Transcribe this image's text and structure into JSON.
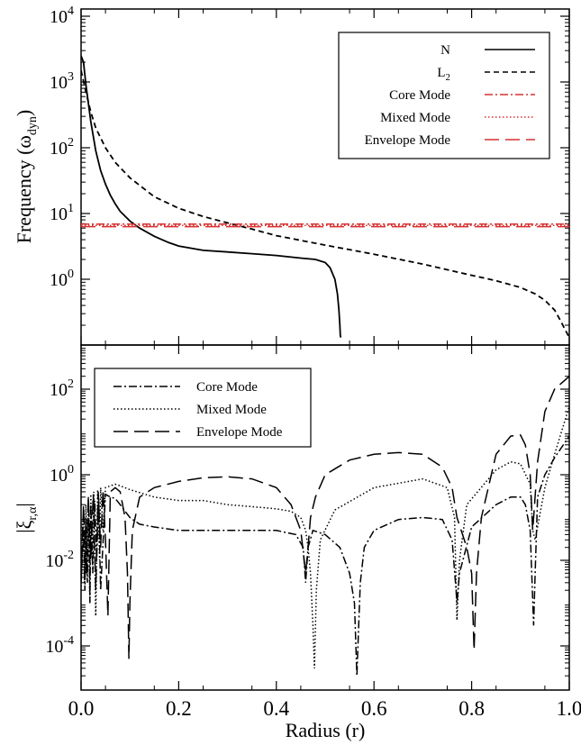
{
  "chart_data": [
    {
      "type": "line",
      "panel": "top",
      "ylabel": "Frequency (ω",
      "ylabel_sub": "dyn",
      "ylabel_close": ")",
      "yscale": "log",
      "ylim": [
        0.13,
        10000
      ],
      "xlim": [
        0,
        1
      ],
      "yticks": [
        {
          "base": "10",
          "exp": "4",
          "value": 10000
        },
        {
          "base": "10",
          "exp": "3",
          "value": 1000
        },
        {
          "base": "10",
          "exp": "2",
          "value": 100
        },
        {
          "base": "10",
          "exp": "1",
          "value": 10
        },
        {
          "base": "10",
          "exp": "0",
          "value": 1
        }
      ],
      "legend": {
        "placement": "top-right"
      },
      "series": [
        {
          "name": "N",
          "name_sub": "",
          "style": "solid",
          "color": "#000000",
          "x": [
            0.0,
            0.005,
            0.01,
            0.02,
            0.03,
            0.04,
            0.05,
            0.06,
            0.07,
            0.08,
            0.1,
            0.12,
            0.15,
            0.18,
            0.2,
            0.25,
            0.3,
            0.35,
            0.4,
            0.45,
            0.48,
            0.5,
            0.51,
            0.52,
            0.525,
            0.528,
            0.53,
            0.531,
            0.532
          ],
          "y": [
            2500,
            2000,
            900,
            250,
            90,
            45,
            28,
            19,
            14,
            10.8,
            7.7,
            6.0,
            4.5,
            3.6,
            3.2,
            2.75,
            2.6,
            2.45,
            2.3,
            2.1,
            2.0,
            1.8,
            1.5,
            1.0,
            0.6,
            0.35,
            0.2,
            0.14,
            0.13
          ]
        },
        {
          "name": "L",
          "name_sub": "2",
          "style": "dashed",
          "color": "#000000",
          "x": [
            0.0,
            0.01,
            0.02,
            0.03,
            0.05,
            0.07,
            0.1,
            0.15,
            0.2,
            0.25,
            0.3,
            0.35,
            0.4,
            0.5,
            0.6,
            0.7,
            0.8,
            0.85,
            0.9,
            0.93,
            0.95,
            0.97,
            0.98,
            0.99,
            1.0
          ],
          "y": [
            1500,
            700,
            350,
            200,
            100,
            60,
            35,
            18,
            12,
            9,
            7.2,
            5.8,
            4.6,
            3.3,
            2.4,
            1.7,
            1.15,
            0.95,
            0.75,
            0.6,
            0.48,
            0.34,
            0.25,
            0.18,
            0.13
          ]
        },
        {
          "name": "Core Mode",
          "name_sub": "",
          "style": "dashdot",
          "color": "#d83030",
          "x": [
            0,
            1
          ],
          "y": [
            6.9,
            6.9
          ]
        },
        {
          "name": "Mixed Mode",
          "name_sub": "",
          "style": "dotted",
          "color": "#d83030",
          "x": [
            0,
            1
          ],
          "y": [
            6.6,
            6.6
          ]
        },
        {
          "name": "Envelope Mode",
          "name_sub": "",
          "style": "longdash",
          "color": "#d83030",
          "x": [
            0,
            1
          ],
          "y": [
            6.3,
            6.3
          ]
        }
      ]
    },
    {
      "type": "line",
      "panel": "bottom",
      "ylabel": "|ξ",
      "ylabel_sub": "r,α",
      "ylabel_close": "|",
      "xlabel": "Radius (r)",
      "yscale": "log",
      "ylim": [
        8e-06,
        800
      ],
      "xlim": [
        0,
        1
      ],
      "xticks": [
        {
          "label": "0.0",
          "value": 0.0
        },
        {
          "label": "0.2",
          "value": 0.2
        },
        {
          "label": "0.4",
          "value": 0.4
        },
        {
          "label": "0.6",
          "value": 0.6
        },
        {
          "label": "0.8",
          "value": 0.8
        },
        {
          "label": "1.0",
          "value": 1.0
        }
      ],
      "yticks": [
        {
          "base": "10",
          "exp": "2",
          "value": 100
        },
        {
          "base": "10",
          "exp": "0",
          "value": 1
        },
        {
          "base": "10",
          "exp": "-2",
          "value": 0.01
        },
        {
          "base": "10",
          "exp": "-4",
          "value": 0.0001
        }
      ],
      "legend": {
        "placement": "top-left"
      },
      "series": [
        {
          "name": "Core Mode",
          "style": "dashdot",
          "color": "#000000",
          "x": [
            0.0,
            0.005,
            0.008,
            0.01,
            0.013,
            0.016,
            0.018,
            0.02,
            0.024,
            0.028,
            0.032,
            0.036,
            0.04,
            0.05,
            0.06,
            0.07,
            0.08,
            0.1,
            0.12,
            0.15,
            0.2,
            0.25,
            0.3,
            0.35,
            0.4,
            0.44,
            0.455,
            0.46,
            0.465,
            0.475,
            0.5,
            0.53,
            0.55,
            0.56,
            0.565,
            0.568,
            0.572,
            0.58,
            0.6,
            0.65,
            0.7,
            0.74,
            0.76,
            0.768,
            0.77,
            0.775,
            0.8,
            0.85,
            0.88,
            0.9,
            0.91,
            0.92,
            0.927,
            0.93,
            0.935,
            0.95,
            0.97,
            1.0
          ],
          "y": [
            0.003,
            0.05,
            0.002,
            0.1,
            0.003,
            0.15,
            0.001,
            0.2,
            0.005,
            0.25,
            0.01,
            0.3,
            0.002,
            0.35,
            0.3,
            0.28,
            0.2,
            0.1,
            0.07,
            0.06,
            0.05,
            0.05,
            0.05,
            0.05,
            0.05,
            0.04,
            0.02,
            0.003,
            0.02,
            0.05,
            0.04,
            0.02,
            0.005,
            0.001,
            2e-05,
            0.0002,
            0.003,
            0.02,
            0.05,
            0.09,
            0.1,
            0.09,
            0.03,
            0.002,
            0.001,
            0.005,
            0.06,
            0.2,
            0.3,
            0.3,
            0.2,
            0.05,
            0.0003,
            0.005,
            0.3,
            1.0,
            2.5,
            8.0
          ]
        },
        {
          "name": "Mixed Mode",
          "style": "dotted",
          "color": "#000000",
          "x": [
            0.0,
            0.004,
            0.007,
            0.01,
            0.012,
            0.015,
            0.018,
            0.02,
            0.023,
            0.026,
            0.03,
            0.034,
            0.038,
            0.04,
            0.045,
            0.05,
            0.06,
            0.07,
            0.08,
            0.1,
            0.15,
            0.2,
            0.25,
            0.3,
            0.35,
            0.4,
            0.43,
            0.45,
            0.46,
            0.465,
            0.47,
            0.475,
            0.478,
            0.482,
            0.49,
            0.52,
            0.6,
            0.7,
            0.75,
            0.765,
            0.77,
            0.775,
            0.79,
            0.85,
            0.88,
            0.9,
            0.92,
            0.925,
            0.93,
            0.95,
            0.97,
            1.0
          ],
          "y": [
            0.002,
            0.1,
            0.003,
            0.2,
            0.005,
            0.3,
            0.001,
            0.35,
            0.01,
            0.4,
            0.0005,
            0.45,
            0.01,
            0.5,
            0.05,
            0.5,
            0.55,
            0.6,
            0.55,
            0.45,
            0.3,
            0.25,
            0.25,
            0.2,
            0.18,
            0.16,
            0.14,
            0.1,
            0.05,
            0.02,
            0.005,
            0.0003,
            3e-05,
            0.002,
            0.03,
            0.15,
            0.5,
            0.8,
            0.5,
            0.1,
            0.0004,
            0.01,
            0.2,
            1.3,
            2.0,
            1.8,
            0.6,
            0.05,
            0.03,
            0.5,
            3.0,
            40
          ]
        },
        {
          "name": "Envelope Mode",
          "style": "longdash",
          "color": "#000000",
          "x": [
            0.0,
            0.005,
            0.01,
            0.015,
            0.02,
            0.025,
            0.03,
            0.035,
            0.04,
            0.045,
            0.05,
            0.055,
            0.06,
            0.07,
            0.08,
            0.09,
            0.095,
            0.098,
            0.1,
            0.105,
            0.12,
            0.15,
            0.2,
            0.25,
            0.3,
            0.35,
            0.4,
            0.43,
            0.45,
            0.46,
            0.465,
            0.47,
            0.48,
            0.5,
            0.55,
            0.6,
            0.65,
            0.7,
            0.74,
            0.76,
            0.77,
            0.79,
            0.8,
            0.805,
            0.81,
            0.82,
            0.85,
            0.88,
            0.9,
            0.91,
            0.92,
            0.925,
            0.935,
            0.95,
            0.97,
            1.0
          ],
          "y": [
            0.003,
            0.2,
            0.005,
            0.3,
            0.01,
            0.35,
            0.002,
            0.4,
            0.02,
            0.45,
            0.03,
            0.0005,
            0.4,
            0.5,
            0.4,
            0.1,
            0.005,
            5e-05,
            0.001,
            0.05,
            0.3,
            0.5,
            0.7,
            0.85,
            0.9,
            0.8,
            0.5,
            0.2,
            0.05,
            0.005,
            0.02,
            0.1,
            0.3,
            1.0,
            2.2,
            3.0,
            3.3,
            3.0,
            1.5,
            0.5,
            0.1,
            0.02,
            0.005,
            8e-05,
            0.005,
            0.1,
            3.0,
            8.0,
            8.5,
            5.0,
            1.0,
            0.05,
            2.0,
            30,
            100,
            200
          ]
        }
      ]
    }
  ]
}
